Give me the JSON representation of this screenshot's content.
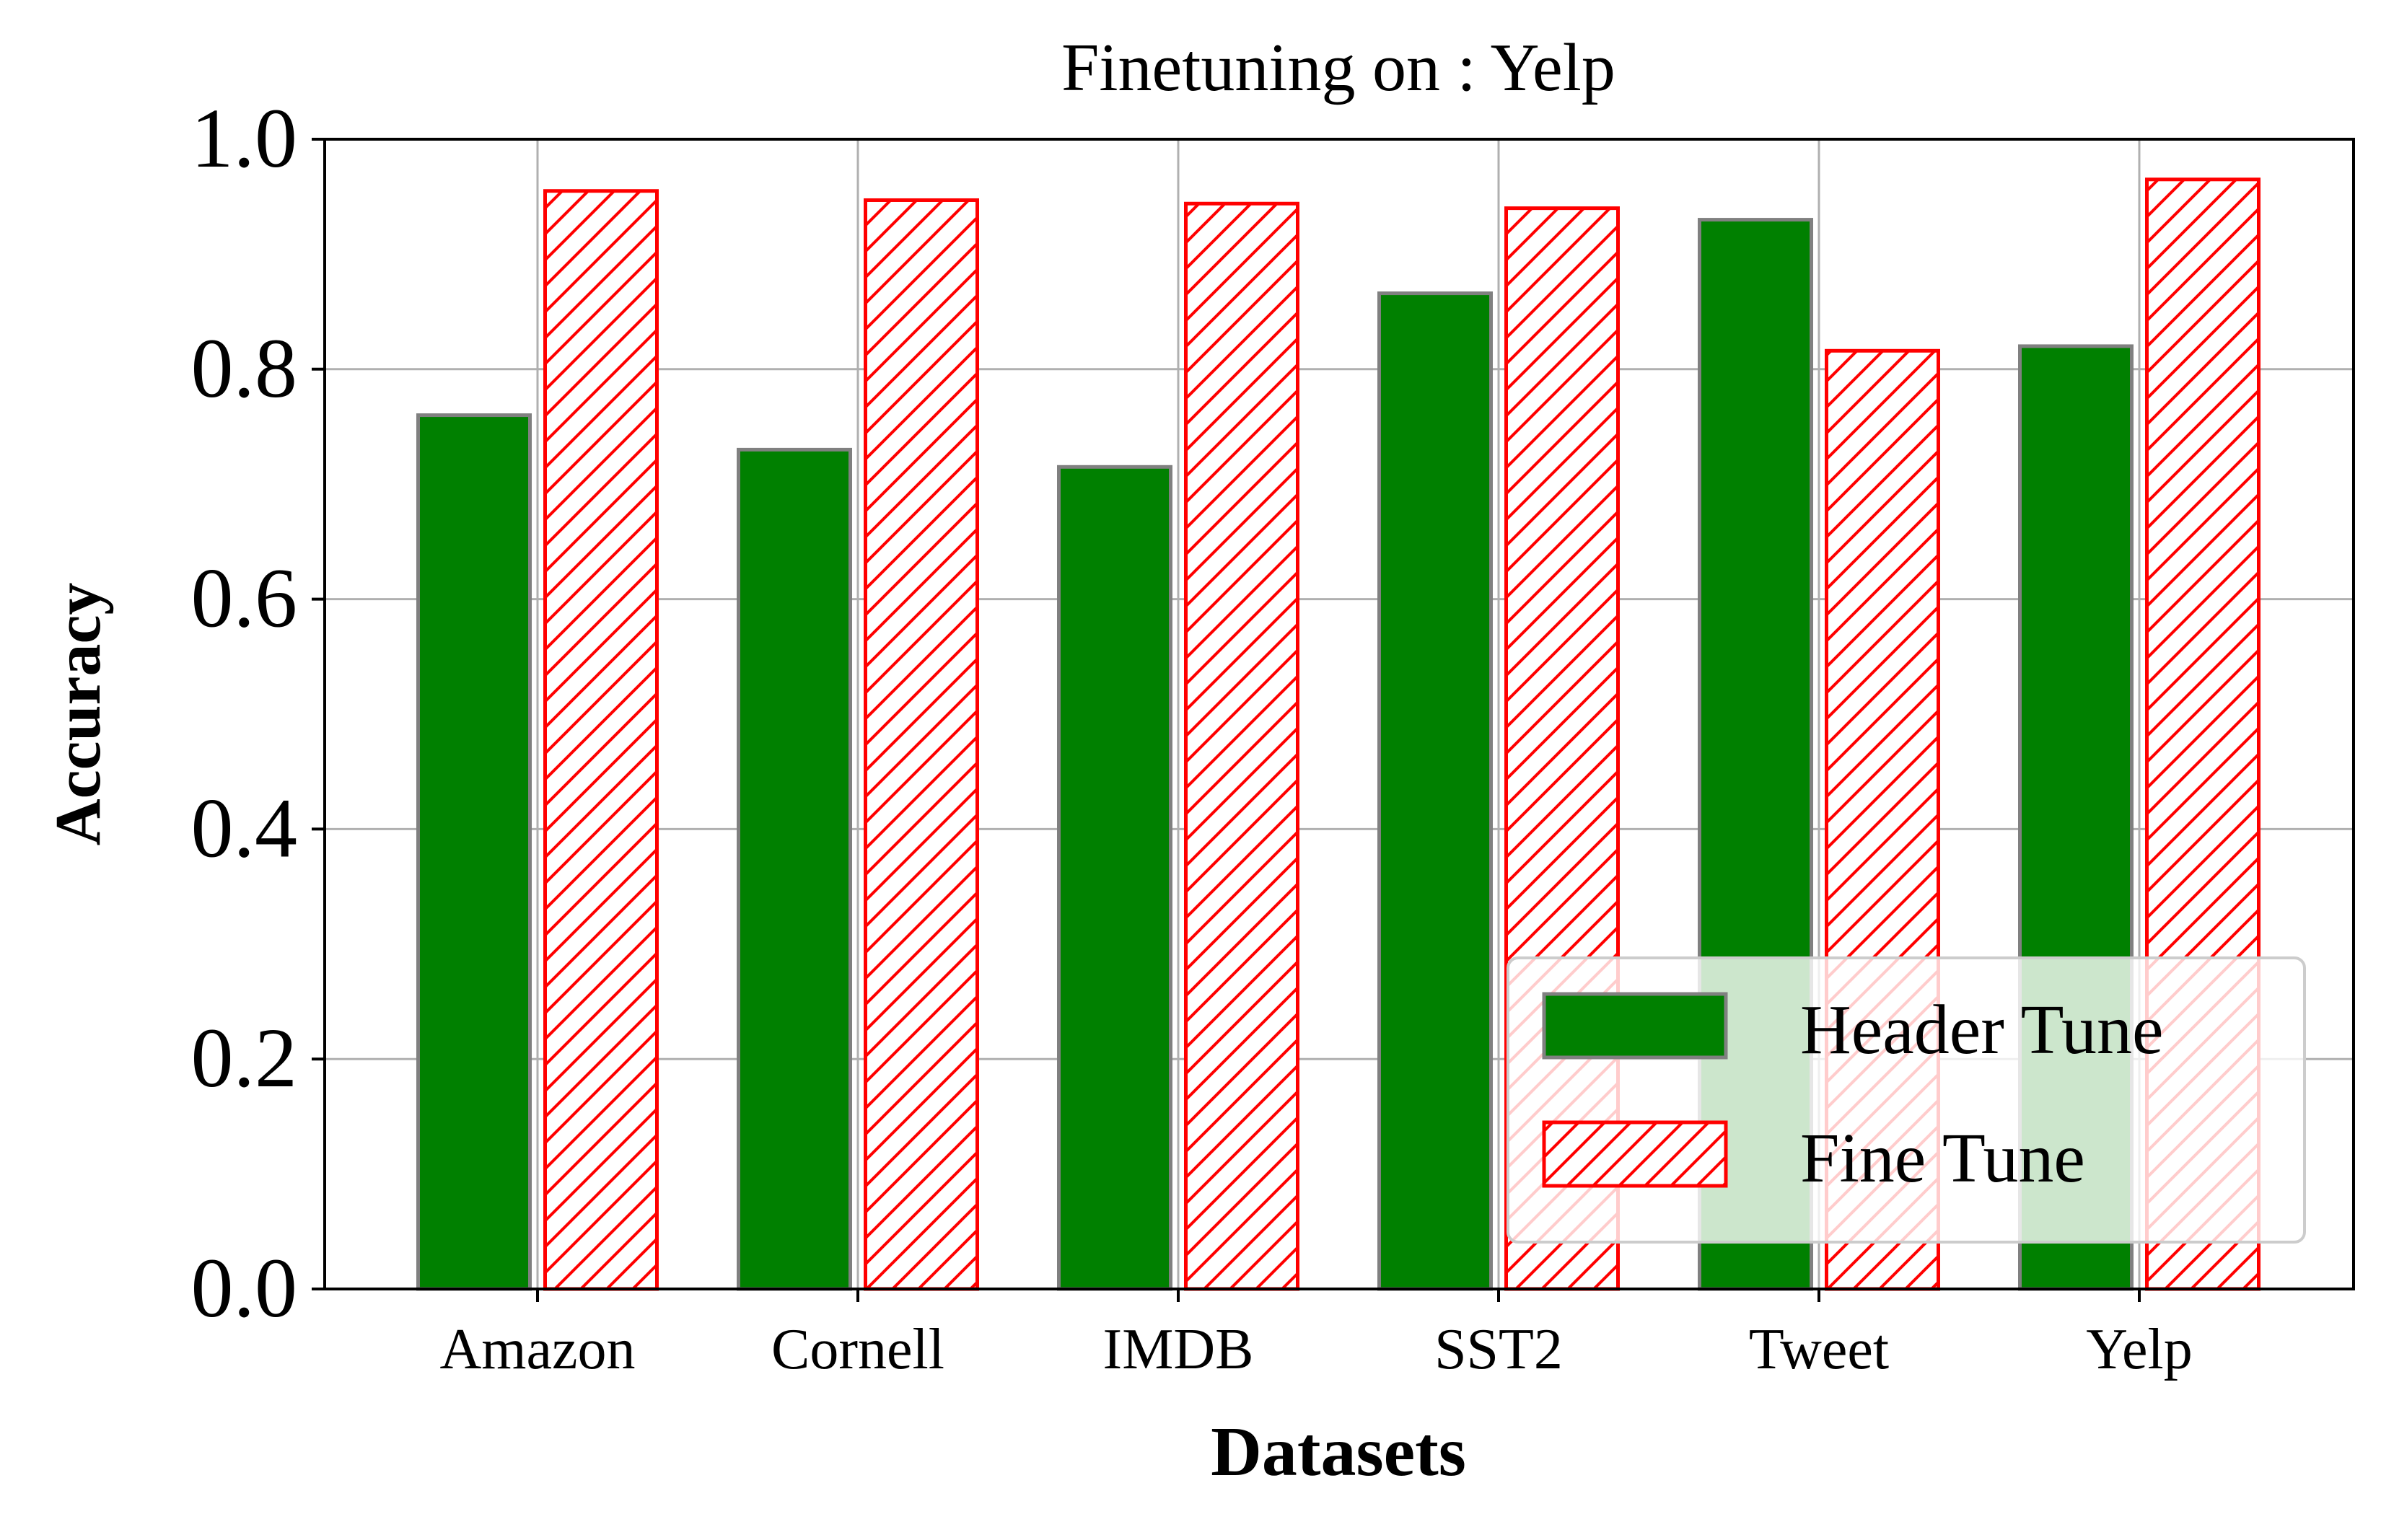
{
  "chart_data": {
    "type": "bar",
    "title": "Finetuning on : Yelp",
    "xlabel": "Datasets",
    "ylabel": "Accuracy",
    "categories": [
      "Amazon",
      "Cornell",
      "IMDB",
      "SST2",
      "Tweet",
      "Yelp"
    ],
    "series": [
      {
        "name": "Header Tune",
        "values": [
          0.76,
          0.73,
          0.715,
          0.866,
          0.93,
          0.82
        ],
        "fill": "#008000",
        "edge": "#808080",
        "hatch": false
      },
      {
        "name": "Fine Tune",
        "values": [
          0.955,
          0.947,
          0.944,
          0.94,
          0.816,
          0.965
        ],
        "fill": "#ffffff",
        "edge": "#ff0000",
        "hatch": true
      }
    ],
    "ylim": [
      0,
      1.0
    ],
    "yticks": [
      "0.0",
      "0.2",
      "0.4",
      "0.6",
      "0.8",
      "1.0"
    ],
    "grid": true,
    "legend_position": "lower-right"
  }
}
